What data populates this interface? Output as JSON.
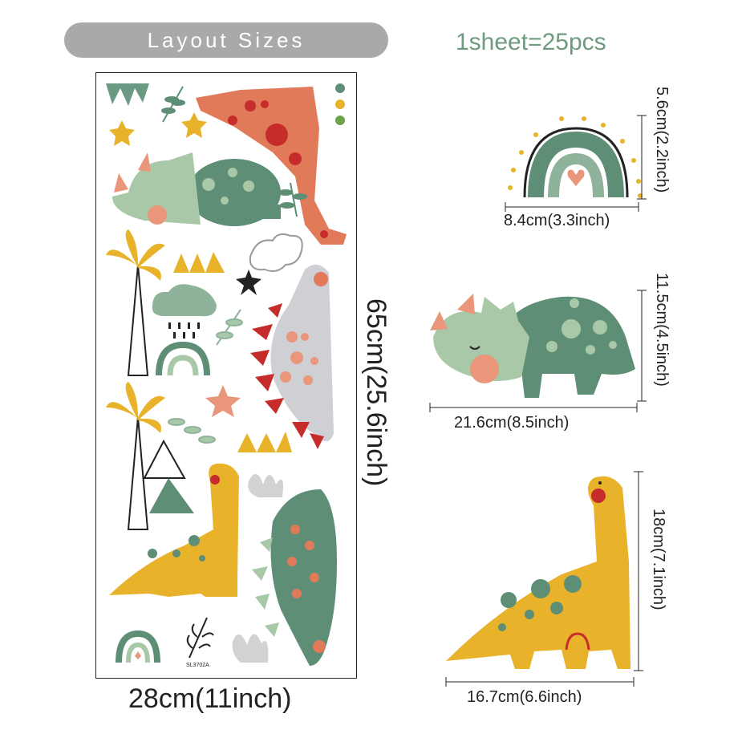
{
  "header": {
    "title": "Layout Sizes",
    "sheet_count": "1sheet=25pcs"
  },
  "sheet": {
    "width_label": "28cm(11inch)",
    "height_label": "65cm(25.6inch)",
    "product_code": "SL3702A"
  },
  "details": {
    "rainbow": {
      "width_label": "8.4cm(3.3inch)",
      "height_label": "5.6cm(2.2inch)"
    },
    "triceratops": {
      "width_label": "21.6cm(8.5inch)",
      "height_label": "11.5cm(4.5inch)"
    },
    "brontosaurus": {
      "width_label": "16.7cm(6.6inch)",
      "height_label": "18cm(7.1inch)"
    }
  },
  "colors": {
    "green_dark": "#5e8f76",
    "green_light": "#a8c8a8",
    "orange": "#e07a59",
    "red": "#c62c2c",
    "yellow": "#e8b32a",
    "grey": "#cfd0d4",
    "pink": "#e9967a"
  }
}
